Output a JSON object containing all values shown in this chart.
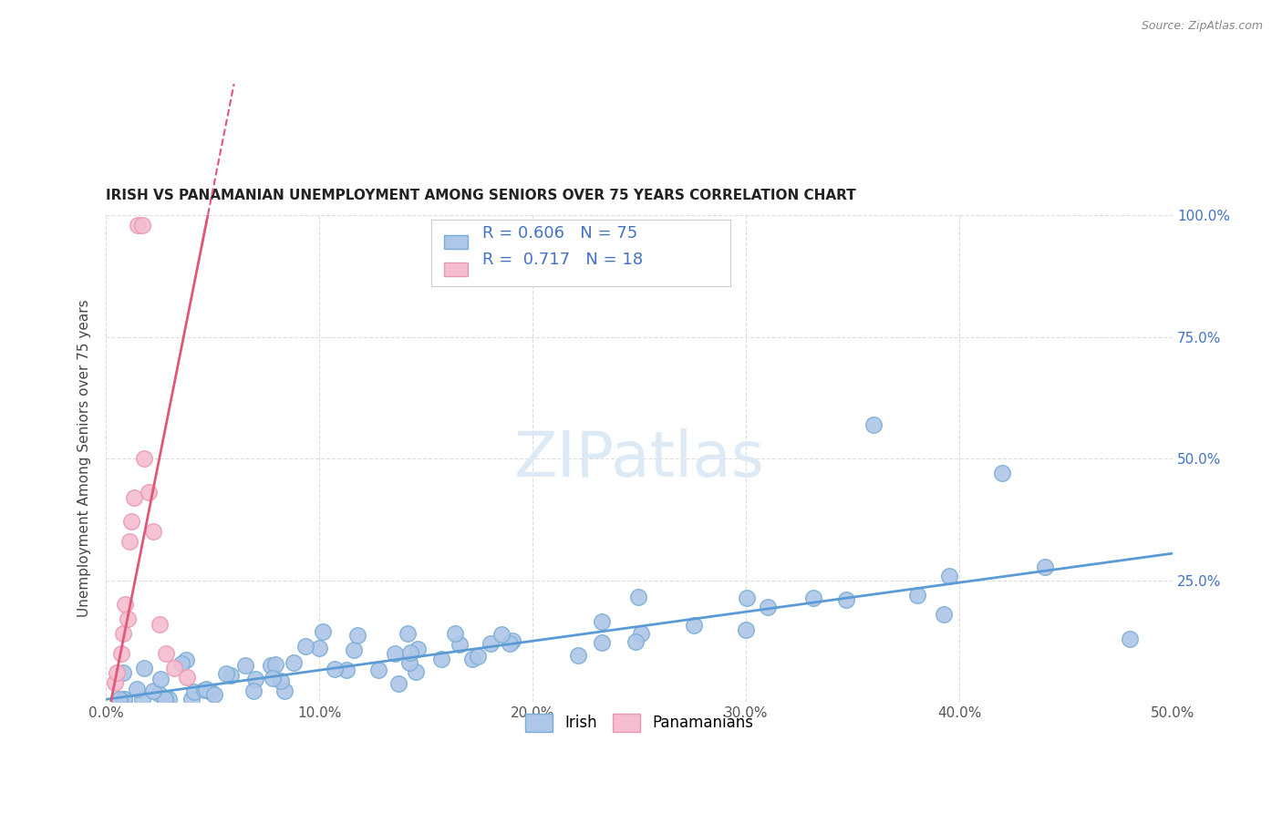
{
  "title": "IRISH VS PANAMANIAN UNEMPLOYMENT AMONG SENIORS OVER 75 YEARS CORRELATION CHART",
  "source": "Source: ZipAtlas.com",
  "ylabel": "Unemployment Among Seniors over 75 years",
  "xlim": [
    0,
    0.5
  ],
  "ylim": [
    0,
    1.0
  ],
  "irish_color": "#aec6e8",
  "irish_edge_color": "#7aadd4",
  "panama_color": "#f5bdd0",
  "panama_edge_color": "#e899b0",
  "trend_irish_color": "#5b9bd5",
  "trend_panama_color": "#e05878",
  "irish_R": 0.606,
  "irish_N": 75,
  "panama_R": 0.717,
  "panama_N": 18,
  "watermark": "ZIPatlas",
  "legend_text_color": "#333333",
  "legend_val_color": "#4472c4",
  "irish_slope": 0.6,
  "irish_intercept": 0.005,
  "panama_slope": 22.0,
  "panama_intercept": -0.05
}
